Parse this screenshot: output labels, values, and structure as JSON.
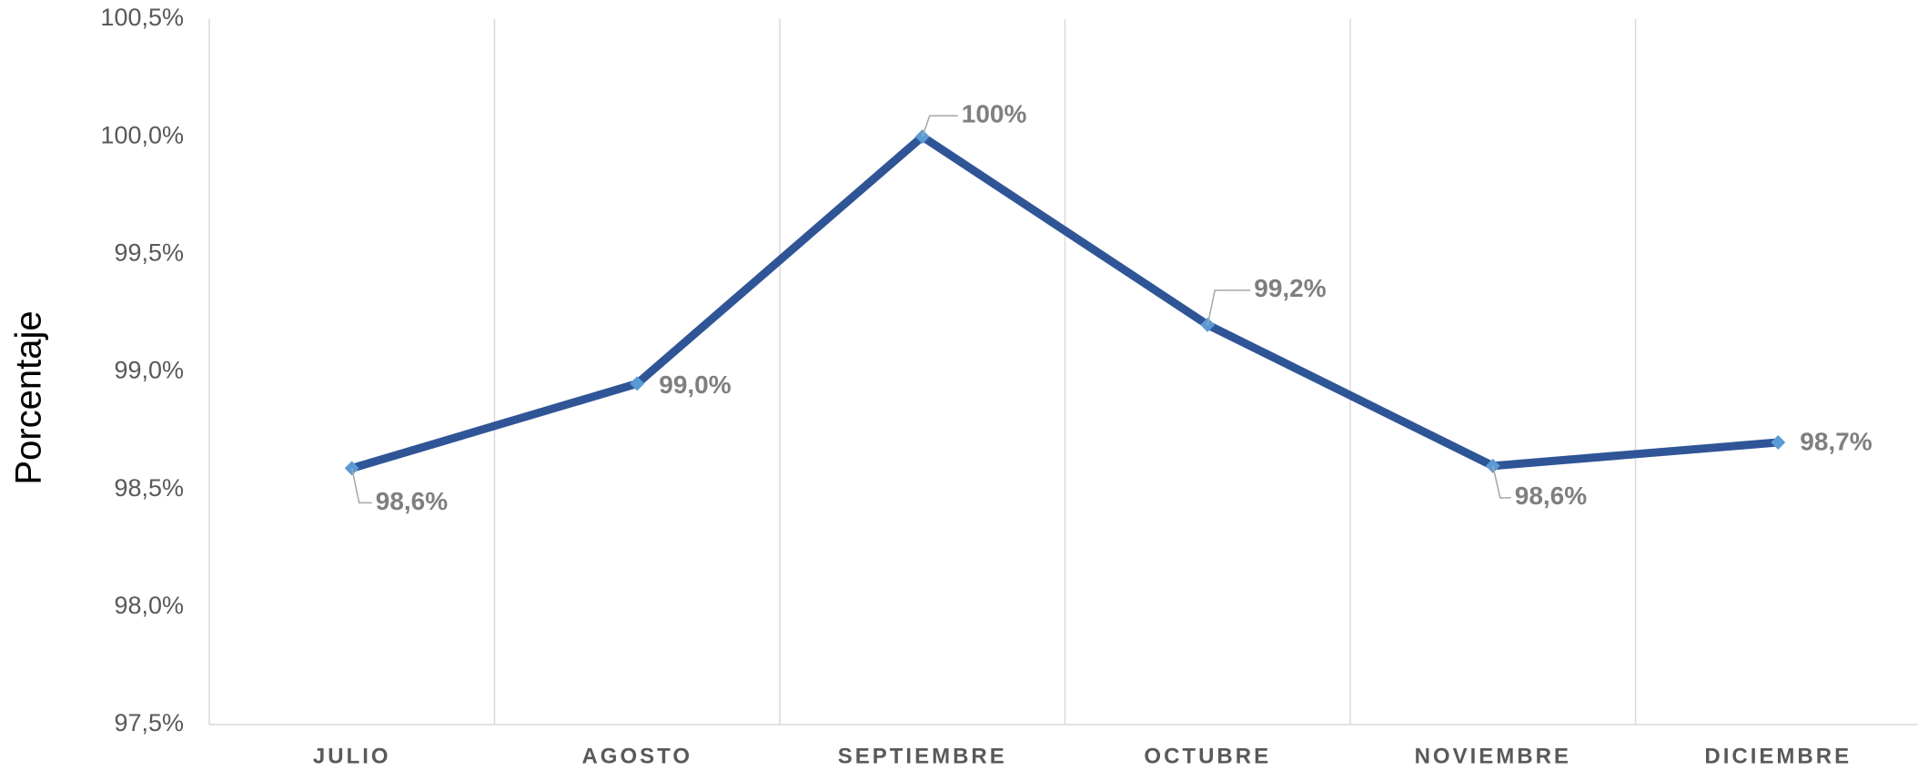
{
  "chart_data": {
    "type": "line",
    "y_axis_label": "Porcentaje",
    "categories": [
      "JULIO",
      "AGOSTO",
      "SEPTIEMBRE",
      "OCTUBRE",
      "NOVIEMBRE",
      "DICIEMBRE"
    ],
    "series": [
      {
        "color": "#2f5597",
        "marker_color": "#5b9bd5",
        "values": [
          98.59,
          98.95,
          100.0,
          99.2,
          98.6,
          98.7
        ],
        "value_labels": [
          "98,6%",
          "99,0%",
          "100%",
          "99,2%",
          "98,6%",
          "98,7%"
        ]
      }
    ],
    "ylim": [
      97.5,
      100.5
    ],
    "yticks": [
      {
        "value": 97.5,
        "label": "97,5%"
      },
      {
        "value": 98.0,
        "label": "98,0%"
      },
      {
        "value": 98.5,
        "label": "98,5%"
      },
      {
        "value": 99.0,
        "label": "99,0%"
      },
      {
        "value": 99.5,
        "label": "99,5%"
      },
      {
        "value": 100.0,
        "label": "100,0%"
      },
      {
        "value": 100.5,
        "label": "100,5%"
      }
    ],
    "grid": "x"
  }
}
